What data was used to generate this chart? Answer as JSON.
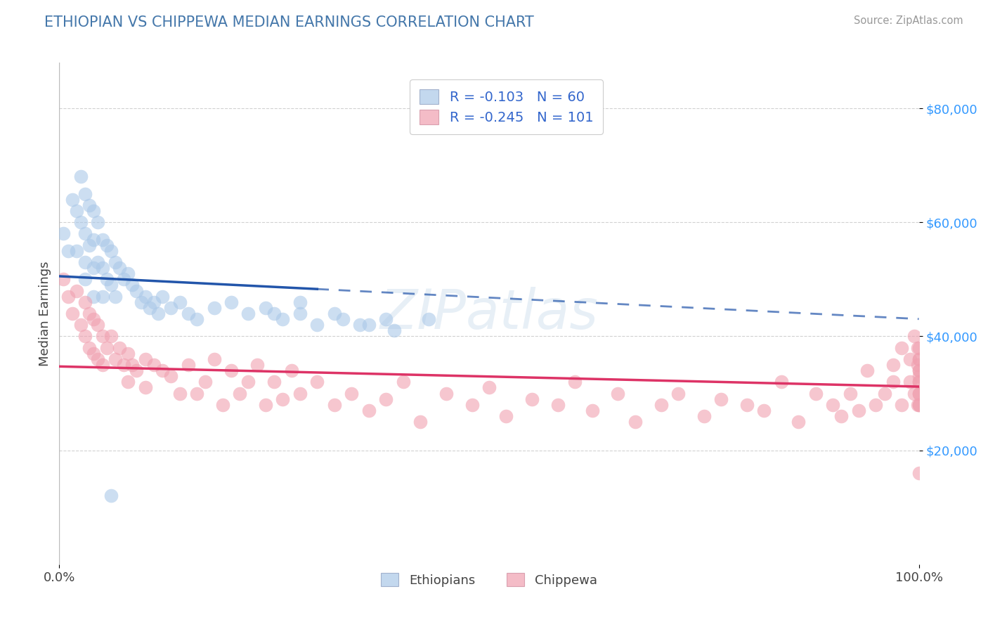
{
  "title": "ETHIOPIAN VS CHIPPEWA MEDIAN EARNINGS CORRELATION CHART",
  "source": "Source: ZipAtlas.com",
  "ylabel": "Median Earnings",
  "ytick_values": [
    20000,
    40000,
    60000,
    80000
  ],
  "ylim": [
    0,
    88000
  ],
  "xlim": [
    0.0,
    1.0
  ],
  "legend_labels_bottom": [
    "Ethiopians",
    "Chippewa"
  ],
  "ethiopians_R": -0.103,
  "ethiopians_N": 60,
  "chippewa_R": -0.245,
  "chippewa_N": 101,
  "ethiopians_color": "#aac8e8",
  "chippewa_color": "#f0a0b0",
  "ethiopians_line_color": "#2255aa",
  "chippewa_line_color": "#dd3366",
  "background_color": "#ffffff",
  "grid_color": "#cccccc",
  "title_color": "#4477aa",
  "source_color": "#999999",
  "ytick_color": "#3399ff",
  "ethiopians_x": [
    0.005,
    0.01,
    0.015,
    0.02,
    0.02,
    0.025,
    0.025,
    0.03,
    0.03,
    0.03,
    0.03,
    0.035,
    0.035,
    0.04,
    0.04,
    0.04,
    0.04,
    0.045,
    0.045,
    0.05,
    0.05,
    0.05,
    0.055,
    0.055,
    0.06,
    0.06,
    0.065,
    0.065,
    0.07,
    0.075,
    0.08,
    0.085,
    0.09,
    0.095,
    0.1,
    0.105,
    0.11,
    0.115,
    0.12,
    0.13,
    0.14,
    0.15,
    0.16,
    0.18,
    0.2,
    0.22,
    0.24,
    0.26,
    0.28,
    0.3,
    0.33,
    0.36,
    0.39,
    0.43,
    0.32,
    0.35,
    0.38,
    0.28,
    0.25,
    0.06
  ],
  "ethiopians_y": [
    58000,
    55000,
    64000,
    62000,
    55000,
    68000,
    60000,
    65000,
    58000,
    53000,
    50000,
    63000,
    56000,
    62000,
    57000,
    52000,
    47000,
    60000,
    53000,
    57000,
    52000,
    47000,
    56000,
    50000,
    55000,
    49000,
    53000,
    47000,
    52000,
    50000,
    51000,
    49000,
    48000,
    46000,
    47000,
    45000,
    46000,
    44000,
    47000,
    45000,
    46000,
    44000,
    43000,
    45000,
    46000,
    44000,
    45000,
    43000,
    44000,
    42000,
    43000,
    42000,
    41000,
    43000,
    44000,
    42000,
    43000,
    46000,
    44000,
    12000
  ],
  "chippewa_x": [
    0.005,
    0.01,
    0.015,
    0.02,
    0.025,
    0.03,
    0.03,
    0.035,
    0.035,
    0.04,
    0.04,
    0.045,
    0.045,
    0.05,
    0.05,
    0.055,
    0.06,
    0.065,
    0.07,
    0.075,
    0.08,
    0.08,
    0.085,
    0.09,
    0.1,
    0.1,
    0.11,
    0.12,
    0.13,
    0.14,
    0.15,
    0.16,
    0.17,
    0.18,
    0.19,
    0.2,
    0.21,
    0.22,
    0.23,
    0.24,
    0.25,
    0.26,
    0.27,
    0.28,
    0.3,
    0.32,
    0.34,
    0.36,
    0.38,
    0.4,
    0.42,
    0.45,
    0.48,
    0.5,
    0.52,
    0.55,
    0.58,
    0.6,
    0.62,
    0.65,
    0.67,
    0.7,
    0.72,
    0.75,
    0.77,
    0.8,
    0.82,
    0.84,
    0.86,
    0.88,
    0.9,
    0.91,
    0.92,
    0.93,
    0.94,
    0.95,
    0.96,
    0.97,
    0.97,
    0.98,
    0.98,
    0.99,
    0.99,
    0.995,
    0.995,
    0.999,
    0.999,
    0.999,
    1.0,
    1.0,
    1.0,
    1.0,
    1.0,
    1.0,
    1.0,
    1.0,
    1.0,
    1.0,
    1.0,
    1.0,
    1.0
  ],
  "chippewa_y": [
    50000,
    47000,
    44000,
    48000,
    42000,
    46000,
    40000,
    38000,
    44000,
    43000,
    37000,
    42000,
    36000,
    40000,
    35000,
    38000,
    40000,
    36000,
    38000,
    35000,
    37000,
    32000,
    35000,
    34000,
    36000,
    31000,
    35000,
    34000,
    33000,
    30000,
    35000,
    30000,
    32000,
    36000,
    28000,
    34000,
    30000,
    32000,
    35000,
    28000,
    32000,
    29000,
    34000,
    30000,
    32000,
    28000,
    30000,
    27000,
    29000,
    32000,
    25000,
    30000,
    28000,
    31000,
    26000,
    29000,
    28000,
    32000,
    27000,
    30000,
    25000,
    28000,
    30000,
    26000,
    29000,
    28000,
    27000,
    32000,
    25000,
    30000,
    28000,
    26000,
    30000,
    27000,
    34000,
    28000,
    30000,
    35000,
    32000,
    38000,
    28000,
    36000,
    32000,
    40000,
    30000,
    38000,
    28000,
    35000,
    32000,
    36000,
    30000,
    28000,
    34000,
    38000,
    16000,
    30000,
    36000,
    34000,
    32000,
    28000,
    33000
  ]
}
